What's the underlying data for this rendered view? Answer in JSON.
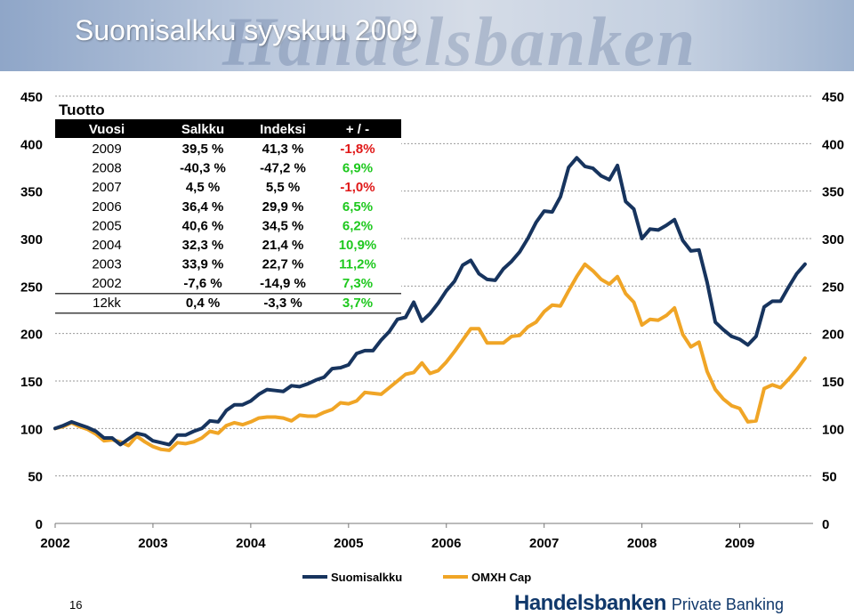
{
  "slide": {
    "title": "Suomisalkku syyskuu 2009",
    "watermark": "Handelsbanken",
    "page_number": "16",
    "brand_main": "Handelsbanken",
    "brand_sub": "Private Banking"
  },
  "colors": {
    "suomisalkku": "#17345e",
    "omxh_cap": "#f0a526",
    "positive": "#1ec81e",
    "negative": "#e01818",
    "grid": "#9a9a9a"
  },
  "table": {
    "title": "Tuotto",
    "headers": [
      "Vuosi",
      "Salkku",
      "Indeksi",
      "+ / -"
    ],
    "rows": [
      {
        "year": "2009",
        "salkku": "39,5 %",
        "indeksi": "41,3 %",
        "diff": "-1,8%",
        "sign": "negative"
      },
      {
        "year": "2008",
        "salkku": "-40,3 %",
        "indeksi": "-47,2 %",
        "diff": "6,9%",
        "sign": "positive"
      },
      {
        "year": "2007",
        "salkku": "4,5 %",
        "indeksi": "5,5 %",
        "diff": "-1,0%",
        "sign": "negative"
      },
      {
        "year": "2006",
        "salkku": "36,4 %",
        "indeksi": "29,9 %",
        "diff": "6,5%",
        "sign": "positive"
      },
      {
        "year": "2005",
        "salkku": "40,6 %",
        "indeksi": "34,5 %",
        "diff": "6,2%",
        "sign": "positive"
      },
      {
        "year": "2004",
        "salkku": "32,3 %",
        "indeksi": "21,4 %",
        "diff": "10,9%",
        "sign": "positive"
      },
      {
        "year": "2003",
        "salkku": "33,9 %",
        "indeksi": "22,7 %",
        "diff": "11,2%",
        "sign": "positive"
      },
      {
        "year": "2002",
        "salkku": "-7,6 %",
        "indeksi": "-14,9 %",
        "diff": "7,3%",
        "sign": "positive"
      },
      {
        "year": "12kk",
        "salkku": "0,4 %",
        "indeksi": "-3,3 %",
        "diff": "3,7%",
        "sign": "positive"
      }
    ]
  },
  "chart_data": {
    "type": "line",
    "title": "",
    "xlabel": "",
    "ylabel": "",
    "xlim": [
      2002,
      2009.75
    ],
    "ylim": [
      0,
      450
    ],
    "y_ticks": [
      "0",
      "50",
      "100",
      "150",
      "200",
      "250",
      "300",
      "350",
      "400",
      "450"
    ],
    "x_ticks": [
      "2002",
      "2003",
      "2004",
      "2005",
      "2006",
      "2007",
      "2008",
      "2009"
    ],
    "grid": "horizontal dashed",
    "legend_position": "bottom",
    "series": [
      {
        "name": "Suomisalkku",
        "x": [
          2002.0,
          2002.083,
          2002.167,
          2002.25,
          2002.333,
          2002.417,
          2002.5,
          2002.583,
          2002.667,
          2002.75,
          2002.833,
          2002.917,
          2003.0,
          2003.083,
          2003.167,
          2003.25,
          2003.333,
          2003.417,
          2003.5,
          2003.583,
          2003.667,
          2003.75,
          2003.833,
          2003.917,
          2004.0,
          2004.083,
          2004.167,
          2004.25,
          2004.333,
          2004.417,
          2004.5,
          2004.583,
          2004.667,
          2004.75,
          2004.833,
          2004.917,
          2005.0,
          2005.083,
          2005.167,
          2005.25,
          2005.333,
          2005.417,
          2005.5,
          2005.583,
          2005.667,
          2005.75,
          2005.833,
          2005.917,
          2006.0,
          2006.083,
          2006.167,
          2006.25,
          2006.333,
          2006.417,
          2006.5,
          2006.583,
          2006.667,
          2006.75,
          2006.833,
          2006.917,
          2007.0,
          2007.083,
          2007.167,
          2007.25,
          2007.333,
          2007.417,
          2007.5,
          2007.583,
          2007.667,
          2007.75,
          2007.833,
          2007.917,
          2008.0,
          2008.083,
          2008.167,
          2008.25,
          2008.333,
          2008.417,
          2008.5,
          2008.583,
          2008.667,
          2008.75,
          2008.833,
          2008.917,
          2009.0,
          2009.083,
          2009.167,
          2009.25,
          2009.333,
          2009.417,
          2009.5,
          2009.583,
          2009.667
        ],
        "values": [
          100,
          103,
          107,
          104,
          101,
          97,
          90,
          90,
          83,
          89,
          95,
          93,
          87,
          85,
          83,
          93,
          93,
          97,
          100,
          108,
          107,
          119,
          125,
          125,
          129,
          136,
          141,
          140,
          139,
          145,
          144,
          147,
          151,
          154,
          163,
          164,
          167,
          179,
          182,
          182,
          193,
          202,
          215,
          217,
          233,
          213,
          221,
          232,
          245,
          255,
          272,
          277,
          263,
          257,
          256,
          268,
          276,
          286,
          300,
          317,
          329,
          328,
          344,
          375,
          385,
          376,
          374,
          366,
          362,
          377,
          339,
          331,
          300,
          310,
          309,
          314,
          320,
          298,
          287,
          288,
          254,
          212,
          204,
          197,
          194,
          188,
          197,
          228,
          234,
          234,
          249,
          263,
          273
        ]
      },
      {
        "name": "OMXH Cap",
        "x": [
          2002.0,
          2002.083,
          2002.167,
          2002.25,
          2002.333,
          2002.417,
          2002.5,
          2002.583,
          2002.667,
          2002.75,
          2002.833,
          2002.917,
          2003.0,
          2003.083,
          2003.167,
          2003.25,
          2003.333,
          2003.417,
          2003.5,
          2003.583,
          2003.667,
          2003.75,
          2003.833,
          2003.917,
          2004.0,
          2004.083,
          2004.167,
          2004.25,
          2004.333,
          2004.417,
          2004.5,
          2004.583,
          2004.667,
          2004.75,
          2004.833,
          2004.917,
          2005.0,
          2005.083,
          2005.167,
          2005.25,
          2005.333,
          2005.417,
          2005.5,
          2005.583,
          2005.667,
          2005.75,
          2005.833,
          2005.917,
          2006.0,
          2006.083,
          2006.167,
          2006.25,
          2006.333,
          2006.417,
          2006.5,
          2006.583,
          2006.667,
          2006.75,
          2006.833,
          2006.917,
          2007.0,
          2007.083,
          2007.167,
          2007.25,
          2007.333,
          2007.417,
          2007.5,
          2007.583,
          2007.667,
          2007.75,
          2007.833,
          2007.917,
          2008.0,
          2008.083,
          2008.167,
          2008.25,
          2008.333,
          2008.417,
          2008.5,
          2008.583,
          2008.667,
          2008.75,
          2008.833,
          2008.917,
          2009.0,
          2009.083,
          2009.167,
          2009.25,
          2009.333,
          2009.417,
          2009.5,
          2009.583,
          2009.667
        ],
        "values": [
          100,
          102,
          106,
          102,
          99,
          94,
          87,
          88,
          86,
          82,
          92,
          86,
          81,
          78,
          77,
          85,
          84,
          86,
          90,
          97,
          95,
          103,
          106,
          104,
          107,
          111,
          112,
          112,
          111,
          108,
          114,
          113,
          113,
          117,
          120,
          127,
          126,
          129,
          138,
          137,
          136,
          143,
          150,
          157,
          159,
          169,
          158,
          161,
          170,
          181,
          193,
          205,
          205,
          190,
          190,
          190,
          197,
          198,
          207,
          212,
          223,
          230,
          229,
          245,
          260,
          273,
          266,
          257,
          252,
          260,
          242,
          233,
          209,
          215,
          214,
          219,
          227,
          199,
          186,
          191,
          160,
          141,
          131,
          124,
          121,
          107,
          108,
          142,
          146,
          143,
          152,
          162,
          174
        ]
      }
    ]
  }
}
